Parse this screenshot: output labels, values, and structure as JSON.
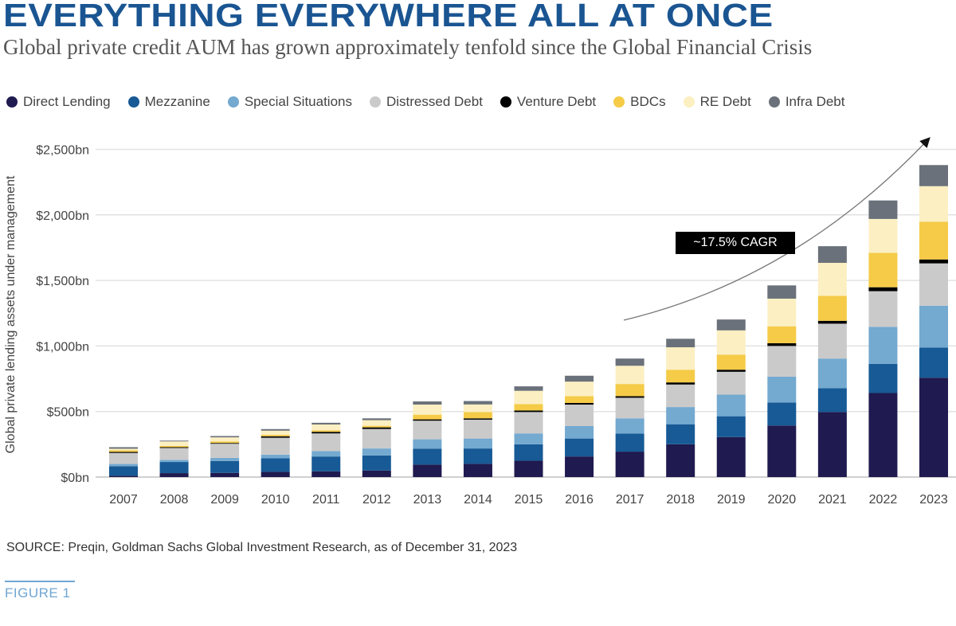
{
  "title": "EVERYTHING EVERYWHERE ALL AT ONCE",
  "subtitle": "Global private credit AUM has grown approximately tenfold since the Global Financial Crisis",
  "source": "SOURCE: Preqin, Goldman Sachs Global Investment Research, as of December 31, 2023",
  "figure_label": "FIGURE 1",
  "chart_data": {
    "type": "bar",
    "stacked": true,
    "ylabel": "Global private lending assets under management",
    "xlabel": "",
    "ylim": [
      0,
      2500
    ],
    "yticks": [
      "$0bn",
      "$500bn",
      "$1,000bn",
      "$1,500bn",
      "$2,000bn",
      "$2,500bn"
    ],
    "ytick_values": [
      0,
      500,
      1000,
      1500,
      2000,
      2500
    ],
    "grid": true,
    "legend_position": "top",
    "annotation": "~17.5% CAGR",
    "categories": [
      "2007",
      "2008",
      "2009",
      "2010",
      "2011",
      "2012",
      "2013",
      "2014",
      "2015",
      "2016",
      "2017",
      "2018",
      "2019",
      "2020",
      "2021",
      "2022",
      "2023"
    ],
    "series": [
      {
        "name": "Direct Lending",
        "color": "#1f1a4f",
        "values": [
          10,
          30,
          32,
          40,
          44,
          50,
          95,
          101,
          125,
          157,
          194,
          250,
          305,
          393,
          496,
          641,
          758
        ]
      },
      {
        "name": "Mezzanine",
        "color": "#175a96",
        "values": [
          73,
          85,
          91,
          103,
          113,
          115,
          121,
          117,
          125,
          137,
          137,
          153,
          159,
          176,
          182,
          222,
          230
        ]
      },
      {
        "name": "Special Situations",
        "color": "#74a9d0",
        "values": [
          18,
          16,
          24,
          28,
          41,
          53,
          72,
          76,
          83,
          95,
          117,
          131,
          165,
          197,
          226,
          283,
          319
        ]
      },
      {
        "name": "Distressed Debt",
        "color": "#cacaca",
        "values": [
          83,
          91,
          107,
          129,
          135,
          149,
          142,
          144,
          163,
          164,
          157,
          172,
          174,
          234,
          266,
          272,
          323
        ]
      },
      {
        "name": "Venture Debt",
        "color": "#000000",
        "values": [
          8,
          6,
          6,
          11,
          12,
          12,
          10,
          10,
          12,
          12,
          12,
          16,
          16,
          21,
          22,
          30,
          30
        ]
      },
      {
        "name": "BDCs",
        "color": "#f5cb47",
        "values": [
          12,
          10,
          12,
          11,
          12,
          12,
          36,
          48,
          49,
          52,
          93,
          97,
          115,
          129,
          190,
          262,
          288
        ]
      },
      {
        "name": "RE Debt",
        "color": "#fcefc2",
        "values": [
          12,
          34,
          31,
          32,
          44,
          43,
          77,
          58,
          101,
          111,
          139,
          171,
          185,
          211,
          252,
          259,
          271
        ]
      },
      {
        "name": "Infra Debt",
        "color": "#6a717a",
        "values": [
          12,
          6,
          10,
          12,
          13,
          14,
          24,
          26,
          34,
          45,
          55,
          65,
          83,
          101,
          127,
          141,
          161
        ]
      }
    ]
  }
}
